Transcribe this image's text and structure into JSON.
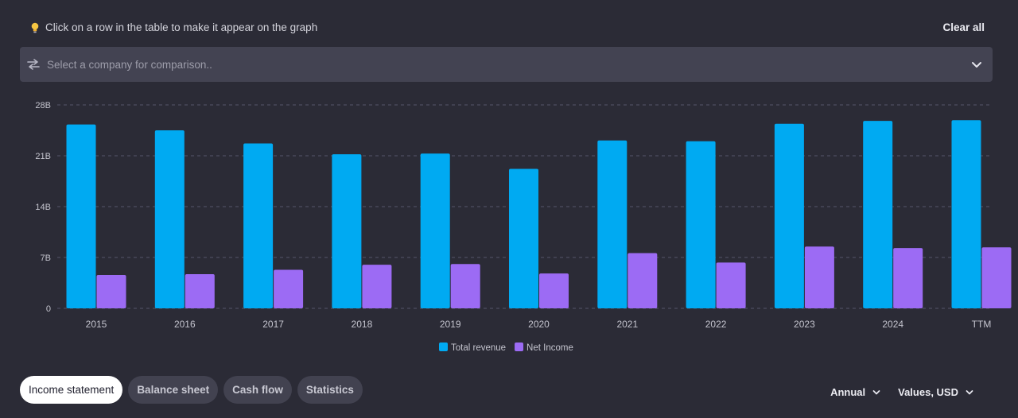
{
  "hint": {
    "text": "Click on a row in the table to make it appear on the graph"
  },
  "clear_all": "Clear all",
  "compare": {
    "placeholder": "Select a company for comparison.."
  },
  "tabs": [
    {
      "label": "Income statement",
      "active": true
    },
    {
      "label": "Balance sheet",
      "active": false
    },
    {
      "label": "Cash flow",
      "active": false
    },
    {
      "label": "Statistics",
      "active": false
    }
  ],
  "selectors": {
    "period": "Annual",
    "values": "Values, USD"
  },
  "colors": {
    "total_revenue": "#00aaf2",
    "net_income": "#9c6bf4",
    "background": "#2b2b36",
    "grid": "#55556a"
  },
  "chart_data": {
    "type": "bar",
    "categories": [
      "2015",
      "2016",
      "2017",
      "2018",
      "2019",
      "2020",
      "2021",
      "2022",
      "2023",
      "2024",
      "TTM"
    ],
    "series": [
      {
        "name": "Total revenue",
        "values": [
          25.3,
          24.5,
          22.7,
          21.2,
          21.3,
          19.2,
          23.1,
          23.0,
          25.4,
          25.8,
          25.9
        ]
      },
      {
        "name": "Net Income",
        "values": [
          4.6,
          4.7,
          5.3,
          6.0,
          6.1,
          4.8,
          7.6,
          6.3,
          8.5,
          8.3,
          8.4
        ]
      }
    ],
    "y_ticks": [
      "0",
      "7B",
      "14B",
      "21B",
      "28B"
    ],
    "y_tick_values": [
      0,
      7,
      14,
      21,
      28
    ],
    "ylim": [
      0,
      28
    ],
    "grid": true,
    "legend": "bottom-center",
    "title": "",
    "xlabel": "",
    "ylabel": ""
  }
}
